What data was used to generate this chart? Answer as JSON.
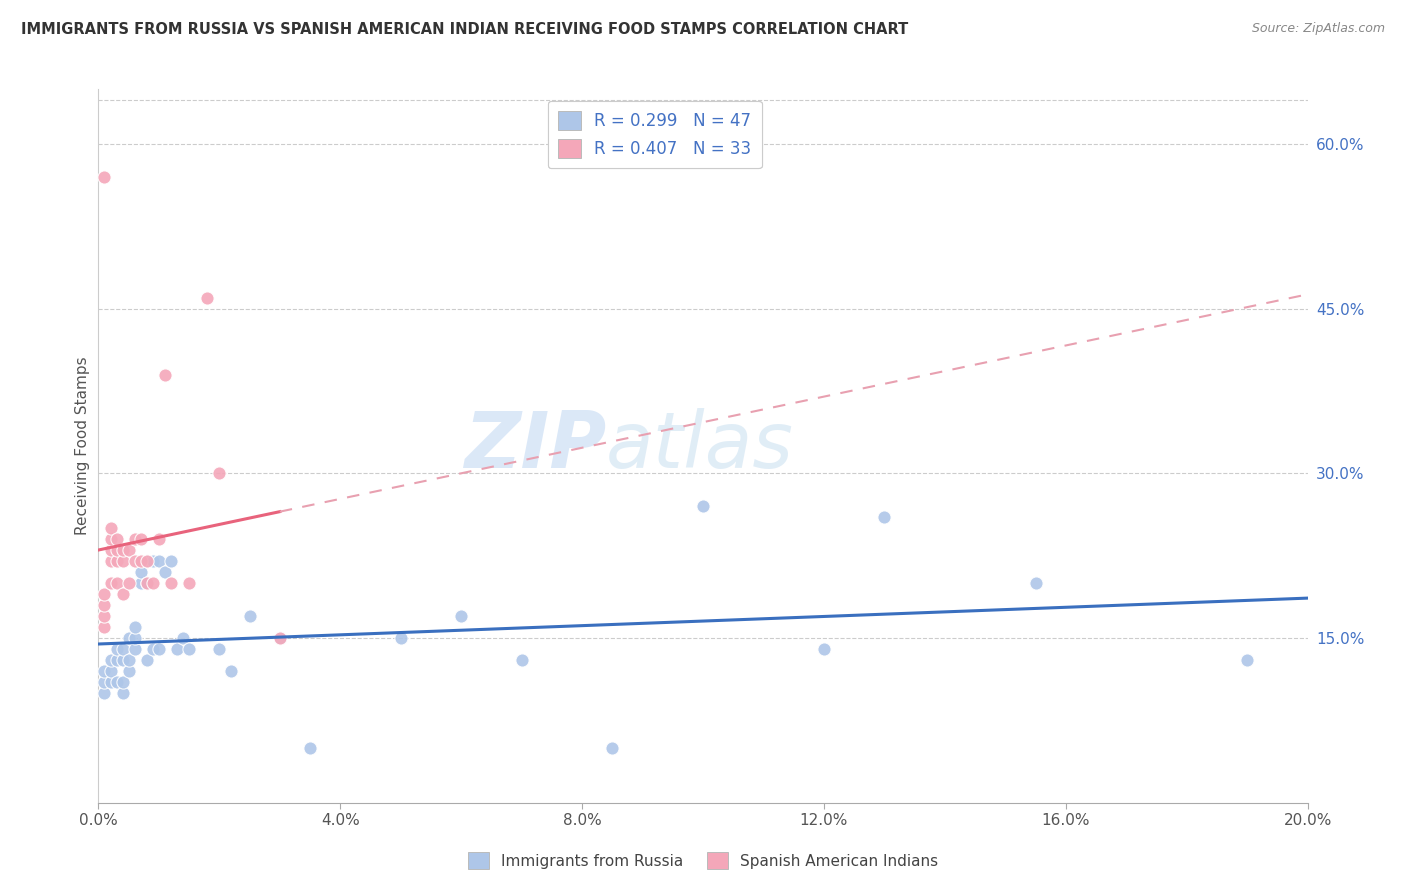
{
  "title": "IMMIGRANTS FROM RUSSIA VS SPANISH AMERICAN INDIAN RECEIVING FOOD STAMPS CORRELATION CHART",
  "source": "Source: ZipAtlas.com",
  "ylabel": "Receiving Food Stamps",
  "right_yticks": [
    "60.0%",
    "45.0%",
    "30.0%",
    "15.0%"
  ],
  "right_ytick_vals": [
    0.6,
    0.45,
    0.3,
    0.15
  ],
  "legend1_label": "R = 0.299   N = 47",
  "legend2_label": "R = 0.407   N = 33",
  "legend_bottom1": "Immigrants from Russia",
  "legend_bottom2": "Spanish American Indians",
  "blue_color": "#aec6e8",
  "pink_color": "#f4a7b9",
  "blue_line_color": "#3a6fbf",
  "pink_line_color": "#e8637c",
  "pink_dash_color": "#e8a0b0",
  "watermark_zip": "ZIP",
  "watermark_atlas": "atlas",
  "blue_scatter_x": [
    0.001,
    0.001,
    0.001,
    0.002,
    0.002,
    0.002,
    0.003,
    0.003,
    0.003,
    0.004,
    0.004,
    0.004,
    0.004,
    0.005,
    0.005,
    0.005,
    0.006,
    0.006,
    0.006,
    0.007,
    0.007,
    0.008,
    0.008,
    0.008,
    0.009,
    0.009,
    0.01,
    0.01,
    0.011,
    0.012,
    0.013,
    0.014,
    0.015,
    0.02,
    0.022,
    0.025,
    0.03,
    0.035,
    0.05,
    0.06,
    0.07,
    0.085,
    0.1,
    0.12,
    0.155,
    0.19,
    0.13
  ],
  "blue_scatter_y": [
    0.1,
    0.11,
    0.12,
    0.11,
    0.12,
    0.13,
    0.11,
    0.13,
    0.14,
    0.1,
    0.11,
    0.13,
    0.14,
    0.12,
    0.13,
    0.15,
    0.14,
    0.15,
    0.16,
    0.2,
    0.21,
    0.13,
    0.2,
    0.22,
    0.14,
    0.22,
    0.14,
    0.22,
    0.21,
    0.22,
    0.14,
    0.15,
    0.14,
    0.14,
    0.12,
    0.17,
    0.15,
    0.05,
    0.15,
    0.17,
    0.13,
    0.05,
    0.27,
    0.14,
    0.2,
    0.13,
    0.26
  ],
  "pink_scatter_x": [
    0.001,
    0.001,
    0.001,
    0.001,
    0.001,
    0.002,
    0.002,
    0.002,
    0.002,
    0.002,
    0.003,
    0.003,
    0.003,
    0.003,
    0.004,
    0.004,
    0.004,
    0.005,
    0.005,
    0.006,
    0.006,
    0.007,
    0.007,
    0.008,
    0.008,
    0.009,
    0.01,
    0.011,
    0.012,
    0.015,
    0.018,
    0.02,
    0.03
  ],
  "pink_scatter_y": [
    0.16,
    0.17,
    0.18,
    0.19,
    0.57,
    0.2,
    0.22,
    0.23,
    0.24,
    0.25,
    0.2,
    0.22,
    0.23,
    0.24,
    0.19,
    0.22,
    0.23,
    0.2,
    0.23,
    0.22,
    0.24,
    0.22,
    0.24,
    0.2,
    0.22,
    0.2,
    0.24,
    0.39,
    0.2,
    0.2,
    0.46,
    0.3,
    0.15
  ],
  "xmin": 0.0,
  "xmax": 0.2,
  "ymin": 0.0,
  "ymax": 0.65,
  "xtick_vals": [
    0.0,
    0.04,
    0.08,
    0.12,
    0.16,
    0.2
  ],
  "xtick_labels": [
    "0.0%",
    "4.0%",
    "8.0%",
    "12.0%",
    "16.0%",
    "20.0%"
  ]
}
